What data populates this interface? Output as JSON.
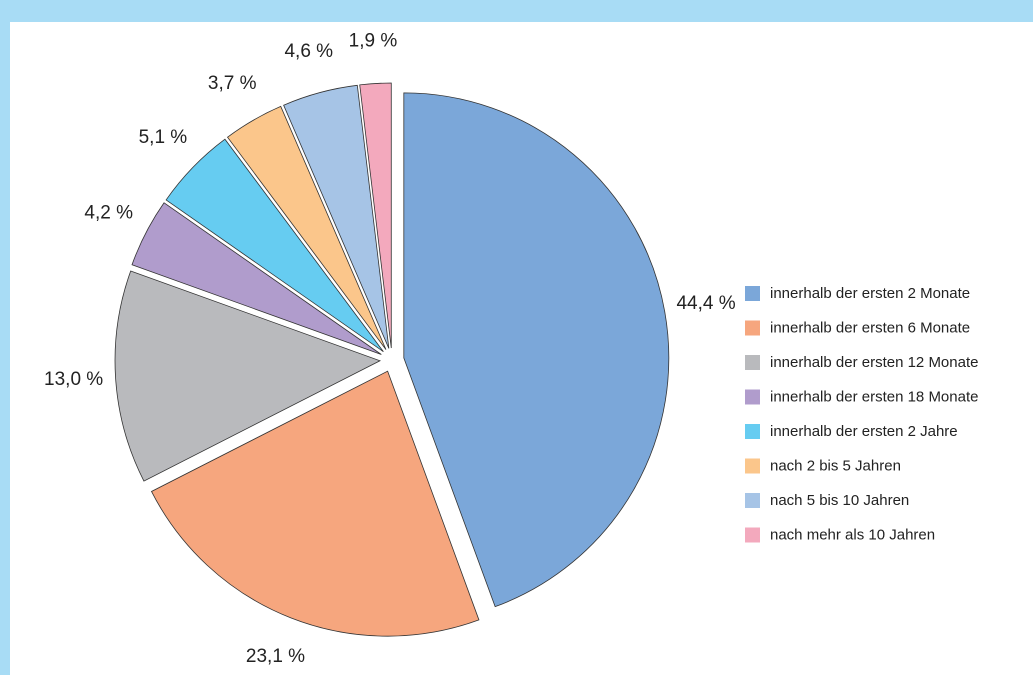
{
  "chart_data": {
    "type": "pie",
    "categories": [
      "innerhalb der ersten 2 Monate",
      "innerhalb der ersten 6 Monate",
      "innerhalb der ersten 12 Monate",
      "innerhalb der ersten 18 Monate",
      "innerhalb der ersten 2 Jahre",
      "nach 2 bis 5 Jahren",
      "nach 5 bis 10 Jahren",
      "nach mehr als 10 Jahren"
    ],
    "values": [
      44.4,
      23.1,
      13.0,
      4.2,
      5.1,
      3.7,
      4.6,
      1.9
    ],
    "value_labels": [
      "44,4 %",
      "23,1 %",
      "13,0 %",
      "4,2 %",
      "5,1 %",
      "3,7 %",
      "4,6 %",
      "1,9 %"
    ],
    "colors": [
      "#7ba7d9",
      "#f6a67e",
      "#b9babd",
      "#b09ccc",
      "#66ccf1",
      "#fbc68b",
      "#a6c4e6",
      "#f3a9bd"
    ],
    "legend": "right"
  }
}
